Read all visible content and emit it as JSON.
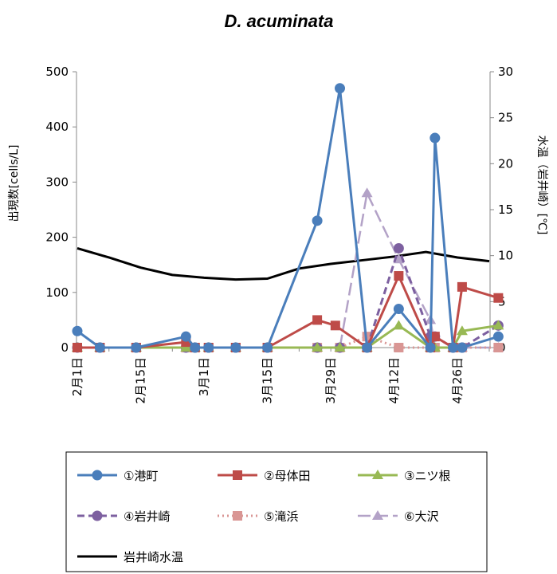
{
  "chart_data": {
    "type": "line",
    "title": "D. acuminata",
    "ylabel": "出現数[cells/L]",
    "y2label": "水温（岩井崎）[℃]",
    "ylim": [
      0,
      500
    ],
    "y2lim": [
      0,
      30
    ],
    "yticks": [
      "0",
      "100",
      "200",
      "300",
      "400",
      "500"
    ],
    "y2ticks": [
      "0",
      "5",
      "10",
      "15",
      "20",
      "25",
      "30"
    ],
    "x": [
      "2月1日",
      "2月8日",
      "2月15日",
      "2月22日",
      "3月1日",
      "3月8日",
      "3月15日",
      "3月22日",
      "3月29日",
      "4月5日",
      "4月12日",
      "4月19日",
      "4月26日",
      "5月3日"
    ],
    "x_tick_labels": [
      "2月1日",
      "2月15日",
      "3月1日",
      "3月15日",
      "3月29日",
      "4月12日",
      "4月26日"
    ],
    "grid": false,
    "legend_position": "bottom",
    "series": [
      {
        "name": "①港町",
        "color": "#4a7ebb",
        "marker": "circle",
        "dash": "solid",
        "points": [
          [
            "2月1日",
            30
          ],
          [
            "2月6日",
            0
          ],
          [
            "2月14日",
            0
          ],
          [
            "2月25日",
            20
          ],
          [
            "2月27日",
            0
          ],
          [
            "3月2日",
            0
          ],
          [
            "3月8日",
            0
          ],
          [
            "3月15日",
            0
          ],
          [
            "3月26日",
            230
          ],
          [
            "3月31日",
            470
          ],
          [
            "4月6日",
            0
          ],
          [
            "4月13日",
            70
          ],
          [
            "4月20日",
            0
          ],
          [
            "4月21日",
            380
          ],
          [
            "4月25日",
            0
          ],
          [
            "4月27日",
            0
          ],
          [
            "5月5日",
            20
          ]
        ]
      },
      {
        "name": "②母体田",
        "color": "#be4b48",
        "marker": "square",
        "dash": "solid",
        "points": [
          [
            "2月1日",
            0
          ],
          [
            "2月6日",
            0
          ],
          [
            "2月14日",
            0
          ],
          [
            "2月25日",
            10
          ],
          [
            "2月27日",
            0
          ],
          [
            "3月2日",
            0
          ],
          [
            "3月8日",
            0
          ],
          [
            "3月15日",
            0
          ],
          [
            "3月26日",
            50
          ],
          [
            "3月30日",
            40
          ],
          [
            "4月6日",
            0
          ],
          [
            "4月13日",
            130
          ],
          [
            "4月20日",
            0
          ],
          [
            "4月21日",
            20
          ],
          [
            "4月25日",
            0
          ],
          [
            "4月27日",
            110
          ],
          [
            "5月5日",
            90
          ]
        ]
      },
      {
        "name": "③ニツ根",
        "color": "#98b954",
        "marker": "triangle",
        "dash": "solid",
        "points": [
          [
            "2月1日",
            0
          ],
          [
            "2月6日",
            0
          ],
          [
            "2月14日",
            0
          ],
          [
            "2月25日",
            0
          ],
          [
            "2月27日",
            0
          ],
          [
            "3月2日",
            0
          ],
          [
            "3月8日",
            0
          ],
          [
            "3月15日",
            0
          ],
          [
            "3月26日",
            0
          ],
          [
            "3月31日",
            0
          ],
          [
            "4月6日",
            0
          ],
          [
            "4月13日",
            40
          ],
          [
            "4月20日",
            0
          ],
          [
            "4月21日",
            0
          ],
          [
            "4月25日",
            0
          ],
          [
            "4月27日",
            30
          ],
          [
            "5月5日",
            40
          ]
        ]
      },
      {
        "name": "④岩井崎",
        "color": "#7d60a0",
        "marker": "circle",
        "dash": "dash",
        "points": [
          [
            "2月1日",
            0
          ],
          [
            "2月6日",
            0
          ],
          [
            "2月14日",
            0
          ],
          [
            "2月25日",
            0
          ],
          [
            "2月27日",
            0
          ],
          [
            "3月2日",
            0
          ],
          [
            "3月8日",
            0
          ],
          [
            "3月15日",
            0
          ],
          [
            "3月26日",
            0
          ],
          [
            "3月31日",
            0
          ],
          [
            "4月6日",
            0
          ],
          [
            "4月13日",
            180
          ],
          [
            "4月20日",
            20
          ],
          [
            "4月21日",
            20
          ],
          [
            "4月25日",
            0
          ],
          [
            "4月27日",
            0
          ],
          [
            "5月5日",
            40
          ]
        ]
      },
      {
        "name": "⑤滝浜",
        "color": "#d99694",
        "marker": "square",
        "dash": "dot",
        "points": [
          [
            "2月1日",
            0
          ],
          [
            "2月6日",
            0
          ],
          [
            "2月14日",
            0
          ],
          [
            "2月25日",
            0
          ],
          [
            "2月27日",
            0
          ],
          [
            "3月2日",
            0
          ],
          [
            "3月8日",
            0
          ],
          [
            "3月15日",
            0
          ],
          [
            "3月26日",
            0
          ],
          [
            "3月31日",
            0
          ],
          [
            "4月6日",
            20
          ],
          [
            "4月13日",
            0
          ],
          [
            "4月20日",
            0
          ],
          [
            "4月21日",
            0
          ],
          [
            "4月25日",
            0
          ],
          [
            "4月27日",
            0
          ],
          [
            "5月5日",
            0
          ]
        ]
      },
      {
        "name": "⑥大沢",
        "color": "#b3a2c7",
        "marker": "triangle",
        "dash": "longdash",
        "points": [
          [
            "2月1日",
            0
          ],
          [
            "2月6日",
            0
          ],
          [
            "2月14日",
            0
          ],
          [
            "2月25日",
            0
          ],
          [
            "2月27日",
            0
          ],
          [
            "3月2日",
            0
          ],
          [
            "3月8日",
            0
          ],
          [
            "3月15日",
            0
          ],
          [
            "3月26日",
            0
          ],
          [
            "3月31日",
            0
          ],
          [
            "4月6日",
            280
          ],
          [
            "4月13日",
            160
          ],
          [
            "4月20日",
            50
          ],
          [
            "4月21日",
            0
          ],
          [
            "4月25日",
            0
          ],
          [
            "4月27日",
            0
          ],
          [
            "5月5日",
            0
          ]
        ]
      }
    ],
    "temperature": {
      "name": "岩井崎水温",
      "color": "#000000",
      "axis": "right",
      "points": [
        [
          "2月1日",
          10.8
        ],
        [
          "2月8日",
          9.8
        ],
        [
          "2月15日",
          8.7
        ],
        [
          "2月22日",
          7.9
        ],
        [
          "3月1日",
          7.6
        ],
        [
          "3月8日",
          7.4
        ],
        [
          "3月15日",
          7.5
        ],
        [
          "3月22日",
          8.6
        ],
        [
          "3月29日",
          9.1
        ],
        [
          "4月5日",
          9.5
        ],
        [
          "4月12日",
          9.9
        ],
        [
          "4月19日",
          10.4
        ],
        [
          "4月26日",
          9.8
        ],
        [
          "5月3日",
          9.4
        ]
      ]
    }
  }
}
